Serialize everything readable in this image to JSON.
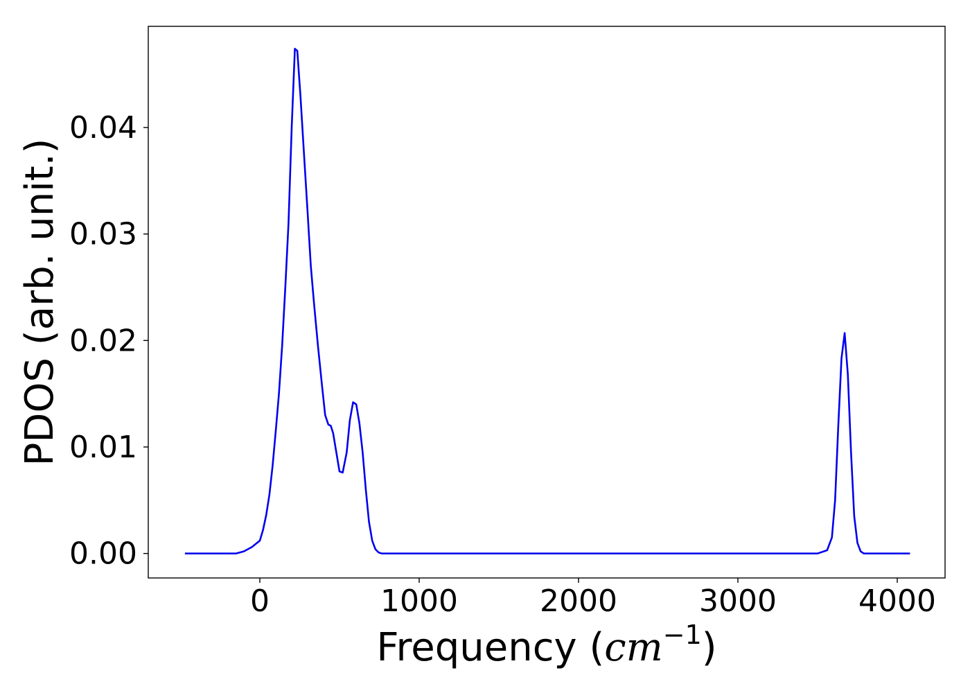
{
  "chart_data": {
    "type": "line",
    "title": "",
    "xlabel_prefix": "Frequency (",
    "xlabel_unit": "cm",
    "xlabel_exp": "−1",
    "xlabel_suffix": ")",
    "ylabel": "PDOS (arb. unit.)",
    "xlim": [
      -700,
      4300
    ],
    "ylim": [
      -0.0023,
      0.0495
    ],
    "xticks": [
      0,
      1000,
      2000,
      3000,
      4000
    ],
    "xtick_labels": [
      "0",
      "1000",
      "2000",
      "3000",
      "4000"
    ],
    "yticks": [
      0.0,
      0.01,
      0.02,
      0.03,
      0.04
    ],
    "ytick_labels": [
      "0.00",
      "0.01",
      "0.02",
      "0.03",
      "0.04"
    ],
    "grid": false,
    "series": [
      {
        "color": "#0000ee",
        "x": [
          -470,
          -150,
          -100,
          -50,
          0,
          20,
          40,
          60,
          80,
          100,
          120,
          140,
          160,
          180,
          200,
          220,
          235,
          255,
          275,
          300,
          320,
          340,
          365,
          390,
          410,
          430,
          445,
          460,
          480,
          500,
          520,
          545,
          565,
          585,
          605,
          625,
          645,
          665,
          685,
          705,
          725,
          745,
          765,
          785,
          810,
          900,
          1500,
          2000,
          3000,
          3500,
          3560,
          3590,
          3610,
          3630,
          3650,
          3670,
          3690,
          3710,
          3730,
          3750,
          3770,
          3790,
          3810,
          3840,
          4080
        ],
        "y": [
          0.0,
          0.0,
          0.0002,
          0.0006,
          0.0012,
          0.0022,
          0.0036,
          0.0055,
          0.0082,
          0.0115,
          0.015,
          0.0195,
          0.025,
          0.031,
          0.04,
          0.0474,
          0.0472,
          0.043,
          0.038,
          0.032,
          0.027,
          0.0235,
          0.0195,
          0.0158,
          0.013,
          0.0121,
          0.012,
          0.0113,
          0.0095,
          0.0077,
          0.0076,
          0.0095,
          0.0125,
          0.0142,
          0.014,
          0.0122,
          0.0095,
          0.006,
          0.003,
          0.0012,
          0.0004,
          0.0001,
          0.0,
          0.0,
          0.0,
          0.0,
          0.0,
          0.0,
          0.0,
          0.0,
          0.0003,
          0.0015,
          0.005,
          0.012,
          0.0183,
          0.0207,
          0.0168,
          0.0095,
          0.0035,
          0.001,
          0.0002,
          0.0,
          0.0,
          0.0,
          0.0
        ]
      }
    ]
  }
}
